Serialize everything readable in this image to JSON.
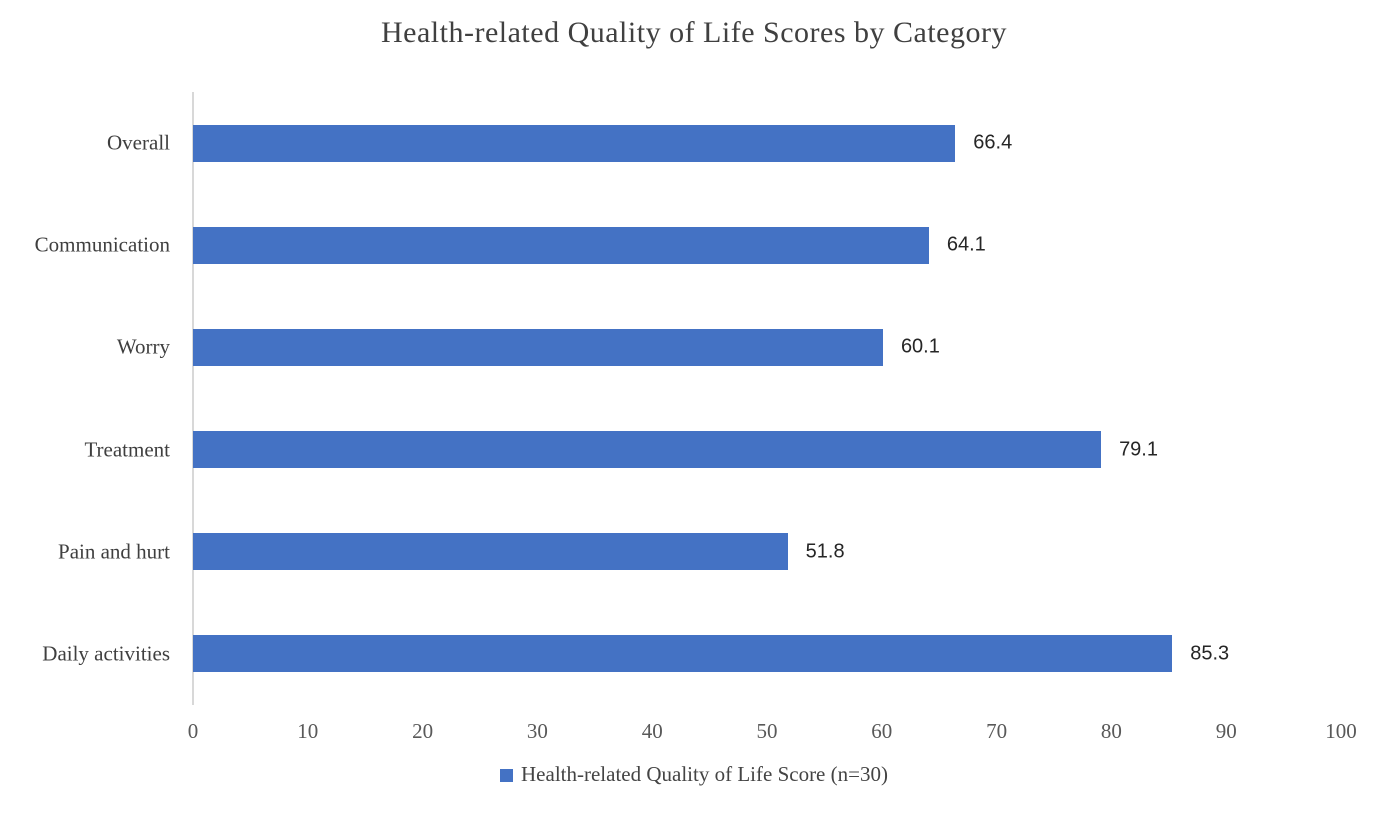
{
  "page": {
    "background": "#ffffff"
  },
  "chart_data": {
    "type": "bar",
    "orientation": "horizontal",
    "title": "Health-related Quality of Life Scores by Category",
    "categories": [
      "Overall",
      "Communication",
      "Worry",
      "Treatment",
      "Pain and hurt",
      "Daily activities"
    ],
    "series": [
      {
        "name": "Health-related Quality of Life Score (n=30)",
        "values": [
          66.4,
          64.1,
          60.1,
          79.1,
          51.8,
          85.3
        ],
        "color": "#4472C4"
      }
    ],
    "data_labels": [
      "66.4",
      "64.1",
      "60.1",
      "79.1",
      "51.8",
      "85.3"
    ],
    "xlabel": "",
    "ylabel": "",
    "xlim": [
      0,
      100
    ],
    "xticks": [
      0,
      10,
      20,
      30,
      40,
      50,
      60,
      70,
      80,
      90,
      100
    ],
    "grid": false,
    "legend_position": "bottom",
    "legend_label": "Health-related Quality of Life Score (n=30)",
    "colors": {
      "bar": "#4472C4",
      "axis_line": "#d8d8d8",
      "title_text": "#404040",
      "category_text": "#3f3f3f",
      "tick_text": "#595959",
      "value_text": "#262626"
    }
  }
}
